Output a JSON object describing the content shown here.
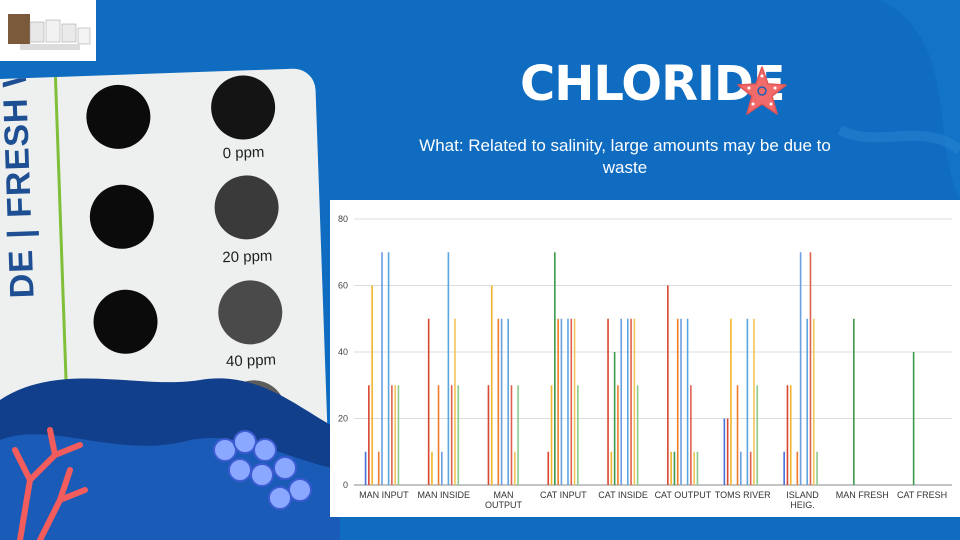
{
  "slide": {
    "title": "CHLORIDE",
    "subtitle": "What: Related to salinity, large amounts may be due to waste",
    "card": {
      "label": "DE | FRESH WATER",
      "ppm_labels": [
        "0 ppm",
        "20 ppm",
        "40 ppm"
      ]
    }
  },
  "colors": {
    "background": "#0f6cc0",
    "title": "#ffffff",
    "starfish": "#f26b6b",
    "coral": "#f25c5c"
  },
  "icons": [
    "starfish-icon",
    "coral-icon"
  ],
  "chart_data": {
    "type": "bar",
    "title": "",
    "xlabel": "",
    "ylabel": "",
    "ylim": [
      0,
      80
    ],
    "yticks": [
      0,
      20,
      40,
      60,
      80
    ],
    "grid": true,
    "legend": "none",
    "categories": [
      "MAN INPUT",
      "MAN INSIDE",
      "MAN OUTPUT",
      "CAT INPUT",
      "CAT INSIDE",
      "CAT OUTPUT",
      "TOMS RIVER",
      "ISLAND HEIG.",
      "MAN FRESH",
      "CAT FRESH"
    ],
    "series": [
      {
        "color": "#4a6fd6",
        "values": [
          10,
          null,
          null,
          null,
          null,
          null,
          20,
          10,
          null,
          null
        ]
      },
      {
        "color": "#d8462f",
        "values": [
          30,
          50,
          30,
          10,
          50,
          60,
          20,
          30,
          null,
          null
        ]
      },
      {
        "color": "#f0b52c",
        "values": [
          60,
          10,
          60,
          30,
          10,
          10,
          50,
          30,
          null,
          null
        ]
      },
      {
        "color": "#3d9a4b",
        "values": [
          null,
          null,
          null,
          70,
          40,
          10,
          null,
          null,
          50,
          40
        ]
      },
      {
        "color": "#f07c2a",
        "values": [
          10,
          30,
          50,
          50,
          30,
          50,
          30,
          10,
          null,
          null
        ]
      },
      {
        "color": "#6a9fe0",
        "values": [
          70,
          10,
          50,
          50,
          50,
          50,
          10,
          70,
          null,
          null
        ]
      },
      {
        "color": "#9b6fd6",
        "values": [
          null,
          null,
          null,
          null,
          null,
          null,
          null,
          null,
          null,
          null
        ]
      },
      {
        "color": "#5aa6e0",
        "values": [
          70,
          70,
          50,
          50,
          50,
          50,
          50,
          50,
          null,
          null
        ]
      },
      {
        "color": "#e06050",
        "values": [
          30,
          30,
          30,
          50,
          50,
          30,
          10,
          70,
          null,
          null
        ]
      },
      {
        "color": "#f2c55a",
        "values": [
          30,
          50,
          10,
          50,
          50,
          10,
          50,
          50,
          null,
          null
        ]
      },
      {
        "color": "#8ccc8a",
        "values": [
          30,
          30,
          30,
          30,
          30,
          10,
          30,
          10,
          null,
          null
        ]
      }
    ]
  }
}
